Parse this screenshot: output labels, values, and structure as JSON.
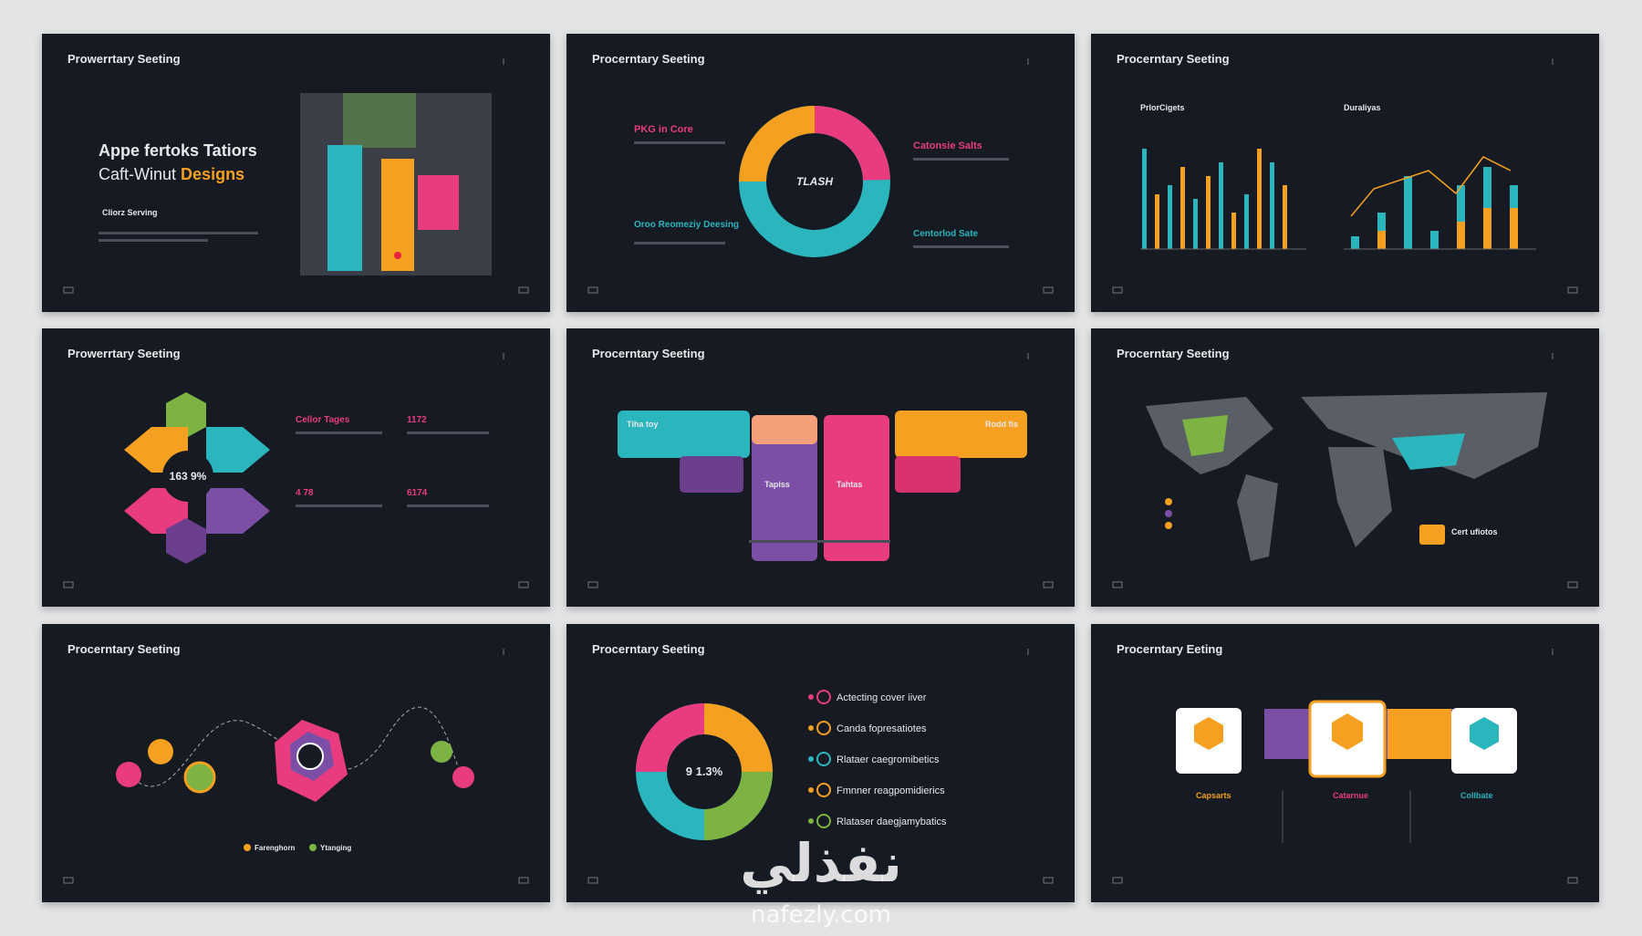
{
  "slides": [
    {
      "title": "Prowerrtary Seeting",
      "heading": "Appe fertoks Tatiors",
      "line_a": "Caft-Winut",
      "line_b": "Designs",
      "sub": "Cliorz Serving"
    },
    {
      "title": "Procerntary Seeting",
      "labels": [
        "PKG in Core",
        "Catonsie Salts",
        "Oroo Reomeziy Deesing",
        "Centorlod Sate"
      ],
      "center": "TLASH"
    },
    {
      "title": "Procerntary Seeting",
      "left": "PrlorCigets",
      "right": "Duraliyas"
    },
    {
      "title": "Prowerrtary Seeting",
      "center": "163 9%",
      "labels": [
        "Cellor Tages",
        "1172",
        "4 78",
        "6174"
      ]
    },
    {
      "title": "Procerntary Seeting",
      "labels": [
        "Tiha toy",
        "Tapiss",
        "Tahtas",
        "Rodd fis"
      ]
    },
    {
      "title": "Procerntary Seeting",
      "callout": "Cert ufiotos"
    },
    {
      "title": "Procerntary Seeting",
      "legend": [
        "Farenghorn",
        "Ytanging"
      ]
    },
    {
      "title": "Procerntary Seeting",
      "center": "9 1.3%",
      "items": [
        "Actecting cover iiver",
        "Canda fopresatiotes",
        "Rlataer caegromibetics",
        "Fmnner reagpomidierics",
        "Rlataser daegjamybatics"
      ]
    },
    {
      "title": "Procerntary Eeting",
      "cards": [
        "Capsarts",
        "Catarnue",
        "Collbate"
      ]
    }
  ],
  "watermark": "نفذلي",
  "watermark_url": "nafezly.com"
}
